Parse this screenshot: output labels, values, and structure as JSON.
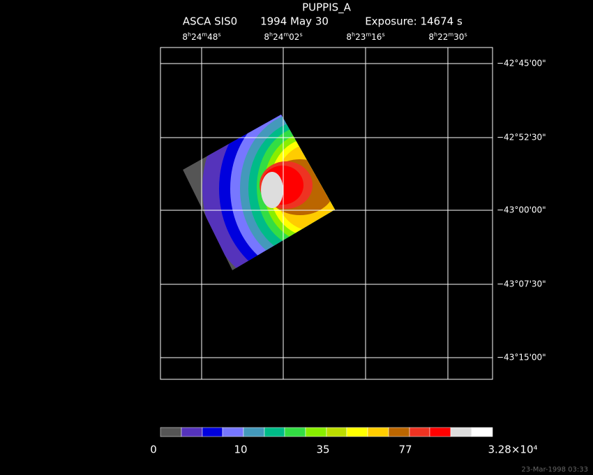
{
  "title": "PUPPIS_A",
  "subtitle": [
    "ASCA SIS0",
    "1994 May 30",
    "Exposure: 14674 s"
  ],
  "ra_labels": [
    "8h24m48s",
    "8h24m02s",
    "8h23m16s",
    "8h22m30s"
  ],
  "dec_labels": [
    "−42°45'00\"",
    "−42°52'30\"",
    "−43°00'00\"",
    "−43°07'30\"",
    "−43°15'00\""
  ],
  "colorbar_labels": [
    "0",
    "10",
    "35",
    "77",
    "3.28×10⁴"
  ],
  "timestamp": "23-Mar-1998 03:33"
}
